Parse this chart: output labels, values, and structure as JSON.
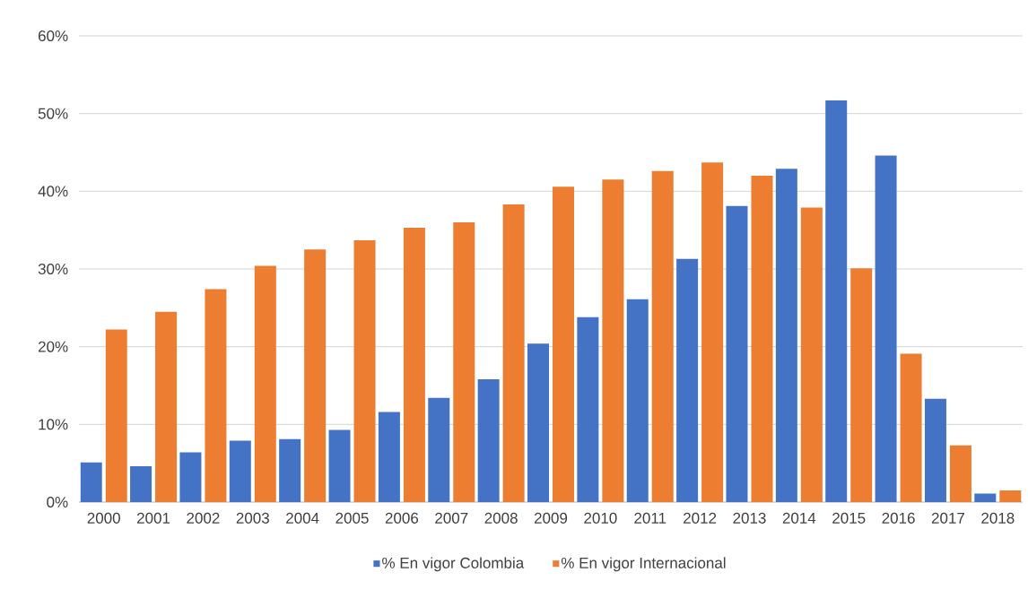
{
  "chart_data": {
    "type": "bar",
    "categories": [
      "2000",
      "2001",
      "2002",
      "2003",
      "2004",
      "2005",
      "2006",
      "2007",
      "2008",
      "2009",
      "2010",
      "2011",
      "2012",
      "2013",
      "2014",
      "2015",
      "2016",
      "2017",
      "2018"
    ],
    "series": [
      {
        "name": "% En vigor Colombia",
        "color": "#4472c4",
        "values": [
          5.1,
          4.6,
          6.4,
          7.9,
          8.1,
          9.3,
          11.6,
          13.4,
          15.8,
          20.4,
          23.8,
          26.1,
          31.3,
          38.1,
          42.9,
          51.7,
          44.6,
          13.3,
          1.1
        ]
      },
      {
        "name": "% En vigor Internacional",
        "color": "#ed7d31",
        "values": [
          22.2,
          24.5,
          27.4,
          30.4,
          32.5,
          33.7,
          35.3,
          36.0,
          38.3,
          40.6,
          41.5,
          42.6,
          43.7,
          42.0,
          37.9,
          30.1,
          19.1,
          7.3,
          1.5
        ]
      }
    ],
    "ylim": [
      0,
      60
    ],
    "yticks": [
      {
        "value": 0,
        "label": "0%"
      },
      {
        "value": 10,
        "label": "10%"
      },
      {
        "value": 20,
        "label": "20%"
      },
      {
        "value": 30,
        "label": "30%"
      },
      {
        "value": 40,
        "label": "40%"
      },
      {
        "value": 50,
        "label": "50%"
      },
      {
        "value": 60,
        "label": "60%"
      }
    ],
    "grid": "y",
    "legend": "bottom"
  }
}
